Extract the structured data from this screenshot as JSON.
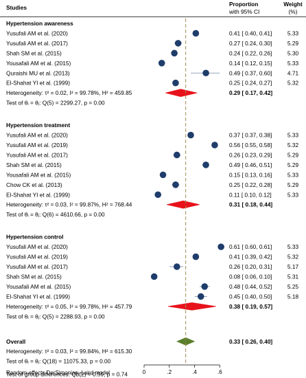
{
  "chart_data": {
    "type": "forest",
    "headers": {
      "studies": "Studies",
      "proportion_line1": "Proportion",
      "proportion_line2": "with 95% CI",
      "weight_line1": "Weight",
      "weight_line2": "(%)"
    },
    "x_ticks": [
      {
        "value": 0,
        "label": "0"
      },
      {
        "value": 0.2,
        "label": ".2"
      },
      {
        "value": 0.4,
        "label": ".4"
      },
      {
        "value": 0.6,
        "label": ".6"
      }
    ],
    "xlim": [
      0,
      0.65
    ],
    "overall_reference": 0.33,
    "model_label": "Random-effects DerSimonian–Laird model",
    "groups": [
      {
        "name": "Hypertension awareness",
        "studies": [
          {
            "label": "Yusufali AM et al. (2020)",
            "est": 0.41,
            "lo": 0.4,
            "hi": 0.41,
            "ci_text": "0.41 [ 0.40,  0.41]",
            "weight": "5.33"
          },
          {
            "label": "Yusufali AM et al. (2017)",
            "est": 0.27,
            "lo": 0.24,
            "hi": 0.3,
            "ci_text": "0.27 [ 0.24,  0.30]",
            "weight": "5.29"
          },
          {
            "label": "Shah SM et al. (2015)",
            "est": 0.24,
            "lo": 0.22,
            "hi": 0.26,
            "ci_text": "0.24 [ 0.22,  0.26]",
            "weight": "5.30"
          },
          {
            "label": "Yousafali AM et al. (2015)",
            "est": 0.14,
            "lo": 0.12,
            "hi": 0.15,
            "ci_text": "0.14 [ 0.12,  0.15]",
            "weight": "5.33"
          },
          {
            "label": "Quraishi MU et al. (2013)",
            "est": 0.49,
            "lo": 0.37,
            "hi": 0.6,
            "ci_text": "0.49 [ 0.37,  0.60]",
            "weight": "4.71"
          },
          {
            "label": "El-Shahat YI et al. (1999)",
            "est": 0.25,
            "lo": 0.24,
            "hi": 0.27,
            "ci_text": "0.25 [ 0.24,  0.27]",
            "weight": "5.32"
          }
        ],
        "heterogeneity": "Heterogeneity: τ² = 0.02, I² = 99.78%, H² = 459.85",
        "pooled": {
          "est": 0.29,
          "lo": 0.17,
          "hi": 0.42,
          "ci_text": "0.29 [ 0.17,  0.42]"
        },
        "test": "Test of θᵢ = θⱼ: Q(5) = 2299.27, p = 0.00"
      },
      {
        "name": "Hypertension treatment",
        "studies": [
          {
            "label": "Yusufali AM et al. (2020)",
            "est": 0.37,
            "lo": 0.37,
            "hi": 0.38,
            "ci_text": "0.37 [ 0.37,  0.38]",
            "weight": "5.33"
          },
          {
            "label": "Yusufali AM et al. (2019)",
            "est": 0.56,
            "lo": 0.55,
            "hi": 0.58,
            "ci_text": "0.56 [ 0.55,  0.58]",
            "weight": "5.32"
          },
          {
            "label": "Yusufali AM et al. (2017)",
            "est": 0.26,
            "lo": 0.23,
            "hi": 0.29,
            "ci_text": "0.26 [ 0.23,  0.29]",
            "weight": "5.29"
          },
          {
            "label": "Shah SM et al. (2015)",
            "est": 0.49,
            "lo": 0.46,
            "hi": 0.51,
            "ci_text": "0.49 [ 0.46,  0.51]",
            "weight": "5.29"
          },
          {
            "label": "Yousafali AM et al. (2015)",
            "est": 0.15,
            "lo": 0.13,
            "hi": 0.16,
            "ci_text": "0.15 [ 0.13,  0.16]",
            "weight": "5.33"
          },
          {
            "label": "Chow CK et al. (2013)",
            "est": 0.25,
            "lo": 0.22,
            "hi": 0.28,
            "ci_text": "0.25 [ 0.22,  0.28]",
            "weight": "5.29"
          },
          {
            "label": "El-Shahat YI et al. (1999)",
            "est": 0.11,
            "lo": 0.1,
            "hi": 0.12,
            "ci_text": "0.11 [ 0.10,  0.12]",
            "weight": "5.33"
          }
        ],
        "heterogeneity": "Heterogeneity: τ² = 0.03, I² = 99.87%, H² = 768.44",
        "pooled": {
          "est": 0.31,
          "lo": 0.18,
          "hi": 0.44,
          "ci_text": "0.31 [ 0.18,  0.44]"
        },
        "test": "Test of θᵢ = θⱼ: Q(6) = 4610.66, p = 0.00"
      },
      {
        "name": "Hypertension control",
        "studies": [
          {
            "label": "Yusufali AM et al. (2020)",
            "est": 0.61,
            "lo": 0.6,
            "hi": 0.61,
            "ci_text": "0.61 [ 0.60,  0.61]",
            "weight": "5.33"
          },
          {
            "label": "Yusufali AM et al. (2019)",
            "est": 0.41,
            "lo": 0.39,
            "hi": 0.42,
            "ci_text": "0.41 [ 0.39,  0.42]",
            "weight": "5.32"
          },
          {
            "label": "Yusufali AM et al. (2017)",
            "est": 0.26,
            "lo": 0.2,
            "hi": 0.31,
            "ci_text": "0.26 [ 0.20,  0.31]",
            "weight": "5.17"
          },
          {
            "label": "Shah SM et al. (2015)",
            "est": 0.08,
            "lo": 0.06,
            "hi": 0.1,
            "ci_text": "0.08 [ 0.06,  0.10]",
            "weight": "5.31"
          },
          {
            "label": "Yousafali AM et al. (2015)",
            "est": 0.48,
            "lo": 0.44,
            "hi": 0.52,
            "ci_text": "0.48 [ 0.44,  0.52]",
            "weight": "5.25"
          },
          {
            "label": "El-Shahat YI et al. (1999)",
            "est": 0.45,
            "lo": 0.4,
            "hi": 0.5,
            "ci_text": "0.45 [ 0.40,  0.50]",
            "weight": "5.18"
          }
        ],
        "heterogeneity": "Heterogeneity: τ² = 0.05, I² = 99.78%, H² = 457.79",
        "pooled": {
          "est": 0.38,
          "lo": 0.19,
          "hi": 0.57,
          "ci_text": "0.38 [ 0.19,  0.57]"
        },
        "test": "Test of θᵢ = θⱼ: Q(5) = 2288.93, p = 0.00"
      }
    ],
    "overall": {
      "name": "Overall",
      "heterogeneity": "Heterogeneity: τ² = 0.03, I² = 99.84%, H² = 615.30",
      "pooled": {
        "est": 0.33,
        "lo": 0.26,
        "hi": 0.4,
        "ci_text": "0.33 [ 0.26,  0.40]"
      },
      "test": "Test of θᵢ = θⱼ: Q(18) = 11075.33, p = 0.00",
      "group_test": "Test of group differences: Qb(2) = 0.59, p = 0.74"
    },
    "colors": {
      "study_marker": "#1f3d6b",
      "pooled_diamond": "#e8121b",
      "overall_diamond": "#5b7f2d",
      "reference_line": "#a08a4e",
      "ci_line": "#6f86a6"
    }
  }
}
